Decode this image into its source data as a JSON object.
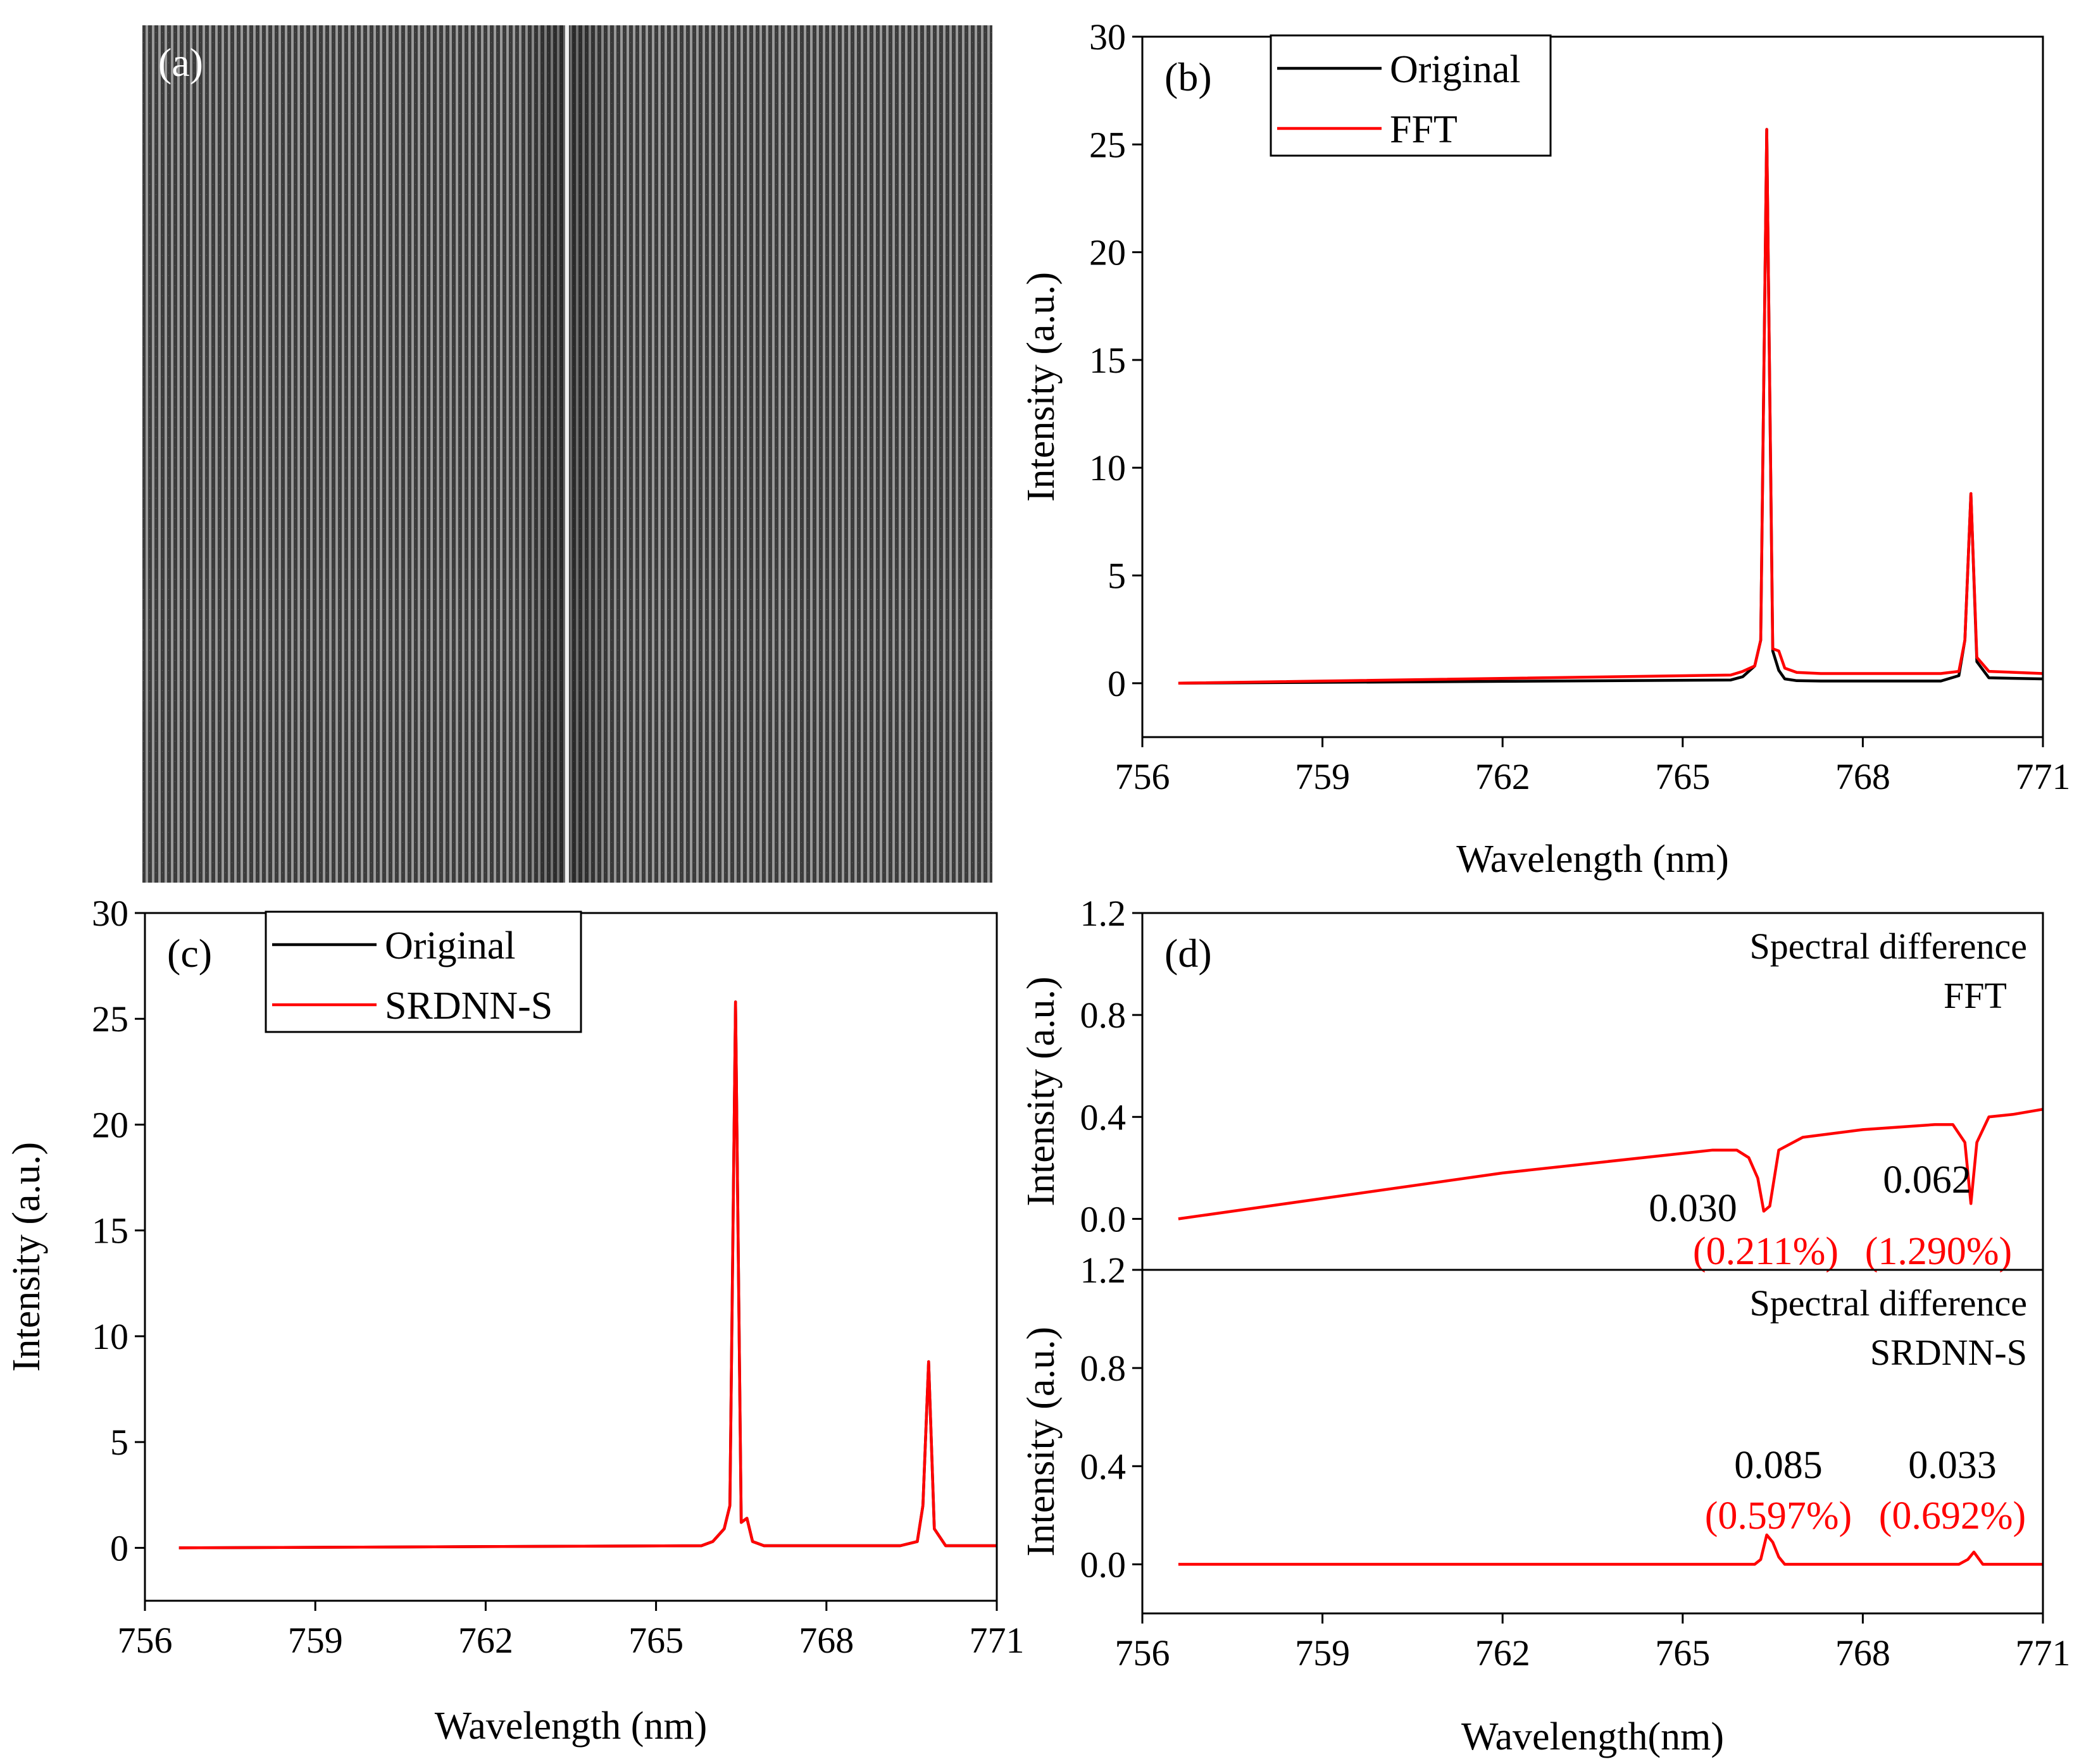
{
  "panel_a": {
    "label": "(a)"
  },
  "chart_data": [
    {
      "id": "b",
      "type": "line",
      "panel_label": "(b)",
      "xlabel": "Wavelength (nm)",
      "ylabel": "Intensity (a.u.)",
      "xlim": [
        756,
        771
      ],
      "ylim": [
        -2.5,
        30
      ],
      "xticks": [
        756,
        759,
        762,
        765,
        768,
        771
      ],
      "yticks": [
        0,
        5,
        10,
        15,
        20,
        25,
        30
      ],
      "legend_position": "top-left",
      "series": [
        {
          "name": "Original",
          "color": "#000000",
          "x": [
            756.6,
            765.8,
            766.0,
            766.2,
            766.3,
            766.4,
            766.5,
            766.6,
            766.7,
            766.9,
            767.3,
            769.3,
            769.6,
            769.7,
            769.8,
            769.9,
            770.1,
            771.0
          ],
          "y": [
            0.0,
            0.15,
            0.3,
            0.8,
            2.0,
            25.7,
            1.5,
            0.6,
            0.2,
            0.12,
            0.1,
            0.1,
            0.35,
            2.0,
            8.8,
            1.0,
            0.25,
            0.2
          ]
        },
        {
          "name": "FFT",
          "color": "#ff0000",
          "x": [
            756.6,
            765.8,
            766.0,
            766.2,
            766.3,
            766.4,
            766.5,
            766.6,
            766.7,
            766.9,
            767.3,
            769.3,
            769.6,
            769.7,
            769.8,
            769.9,
            770.1,
            771.0
          ],
          "y": [
            0.0,
            0.38,
            0.55,
            0.8,
            2.0,
            25.7,
            1.6,
            1.5,
            0.7,
            0.5,
            0.45,
            0.45,
            0.55,
            2.0,
            8.8,
            1.2,
            0.55,
            0.45
          ]
        }
      ]
    },
    {
      "id": "c",
      "type": "line",
      "panel_label": "(c)",
      "xlabel": "Wavelength (nm)",
      "ylabel": "Intensity (a.u.)",
      "xlim": [
        756,
        771
      ],
      "ylim": [
        -2.5,
        30
      ],
      "xticks": [
        756,
        759,
        762,
        765,
        768,
        771
      ],
      "yticks": [
        0,
        5,
        10,
        15,
        20,
        25,
        30
      ],
      "legend_position": "top-left",
      "series": [
        {
          "name": "Original",
          "color": "#000000",
          "x": [
            756.6,
            765.8,
            766.0,
            766.2,
            766.3,
            766.4,
            766.5,
            766.6,
            766.7,
            766.9,
            769.3,
            769.6,
            769.7,
            769.8,
            769.9,
            770.1,
            771.0
          ],
          "y": [
            0.0,
            0.1,
            0.3,
            0.9,
            2.0,
            25.8,
            1.2,
            1.4,
            0.3,
            0.1,
            0.1,
            0.3,
            2.0,
            8.8,
            0.9,
            0.1,
            0.1
          ]
        },
        {
          "name": "SRDNN-S",
          "color": "#ff0000",
          "x": [
            756.6,
            765.8,
            766.0,
            766.2,
            766.3,
            766.4,
            766.5,
            766.6,
            766.7,
            766.9,
            769.3,
            769.6,
            769.7,
            769.8,
            769.9,
            770.1,
            771.0
          ],
          "y": [
            0.0,
            0.1,
            0.3,
            0.9,
            2.0,
            25.8,
            1.2,
            1.4,
            0.3,
            0.1,
            0.1,
            0.3,
            2.0,
            8.8,
            0.9,
            0.1,
            0.1
          ]
        }
      ]
    },
    {
      "id": "d_top",
      "type": "line",
      "panel_label": "(d)",
      "title": "Spectral difference",
      "subtitle": "FFT",
      "xlabel": "",
      "ylabel": "Intensity (a.u.)",
      "xlim": [
        756,
        771
      ],
      "ylim": [
        -0.2,
        1.2
      ],
      "yticks": [
        0.0,
        0.4,
        0.8,
        1.2
      ],
      "series": [
        {
          "name": "FFT difference",
          "color": "#ff0000",
          "x": [
            756.6,
            762.0,
            765.5,
            765.9,
            766.1,
            766.25,
            766.35,
            766.45,
            766.6,
            767.0,
            768.0,
            769.2,
            769.5,
            769.7,
            769.8,
            769.9,
            770.1,
            770.5,
            771.0
          ],
          "y": [
            0.0,
            0.18,
            0.27,
            0.27,
            0.24,
            0.16,
            0.03,
            0.05,
            0.27,
            0.32,
            0.35,
            0.37,
            0.37,
            0.3,
            0.06,
            0.3,
            0.4,
            0.41,
            0.43
          ]
        }
      ],
      "annotations": [
        {
          "value": "0.030",
          "percent": "(0.211%)"
        },
        {
          "value": "0.062",
          "percent": "(1.290%)"
        }
      ]
    },
    {
      "id": "d_bottom",
      "type": "line",
      "title": "Spectral difference",
      "subtitle": "SRDNN-S",
      "xlabel": "Wavelength(nm)",
      "ylabel": "Intensity (a.u.)",
      "xlim": [
        756,
        771
      ],
      "ylim": [
        -0.2,
        1.2
      ],
      "xticks": [
        756,
        759,
        762,
        765,
        768,
        771
      ],
      "yticks": [
        0.0,
        0.4,
        0.8,
        1.2
      ],
      "series": [
        {
          "name": "SRDNN-S difference",
          "color": "#ff0000",
          "x": [
            756.6,
            766.2,
            766.3,
            766.4,
            766.5,
            766.6,
            766.7,
            769.6,
            769.75,
            769.85,
            770.0,
            771.0
          ],
          "y": [
            0.0,
            0.0,
            0.02,
            0.12,
            0.09,
            0.03,
            0.0,
            0.0,
            0.02,
            0.05,
            0.0,
            0.0
          ]
        }
      ],
      "annotations": [
        {
          "value": "0.085",
          "percent": "(0.597%)"
        },
        {
          "value": "0.033",
          "percent": "(0.692%)"
        }
      ]
    }
  ]
}
